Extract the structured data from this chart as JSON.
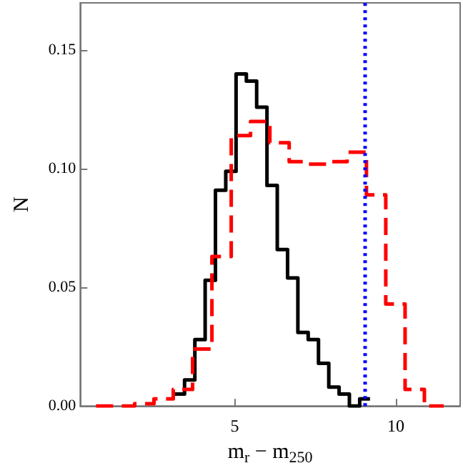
{
  "chart_data": {
    "type": "step",
    "xlabel": "m$_{r}$ − m$_{250}$",
    "ylabel": "N",
    "xlim": [
      0.2,
      12
    ],
    "xticks": [
      5,
      10
    ],
    "ylim": [
      0,
      0.17
    ],
    "yticks": [
      {
        "value": 0,
        "label": "0.00"
      },
      {
        "value": 0.05,
        "label": "0.05"
      },
      {
        "value": 0.1,
        "label": "0.10"
      },
      {
        "value": 0.15,
        "label": "0.15"
      }
    ],
    "grid": false,
    "series": [
      {
        "color": "#000000",
        "line_style": "solid",
        "x": [
          3.12,
          3.44,
          3.76,
          4.08,
          4.4,
          4.72,
          5.04,
          5.36,
          5.68,
          6.0,
          6.32,
          6.64,
          6.96,
          7.28,
          7.6,
          7.92,
          8.24,
          8.56,
          8.88,
          9.2
        ],
        "values": [
          0.005,
          0.011,
          0.028,
          0.053,
          0.091,
          0.099,
          0.14,
          0.137,
          0.126,
          0.093,
          0.066,
          0.054,
          0.031,
          0.028,
          0.018,
          0.008,
          0.005,
          0,
          0.003,
          0.003
        ]
      },
      {
        "color": "#ff0000",
        "line_style": "dashed",
        "x": [
          0.69,
          1.29,
          1.89,
          2.49,
          3.09,
          3.69,
          4.29,
          4.89,
          5.49,
          6.09,
          6.69,
          7.29,
          7.89,
          8.49,
          9.09,
          9.69,
          10.29,
          10.89,
          11.49
        ],
        "values": [
          0,
          0,
          0.001,
          0.003,
          0.007,
          0.024,
          0.063,
          0.114,
          0.12,
          0.111,
          0.103,
          0.102,
          0.103,
          0.107,
          0.089,
          0.043,
          0.007,
          0,
          0
        ]
      }
    ],
    "ref_lines": [
      {
        "axis": "x",
        "value": 9.05,
        "color": "#0000ff",
        "line_style": "dotted"
      }
    ]
  }
}
